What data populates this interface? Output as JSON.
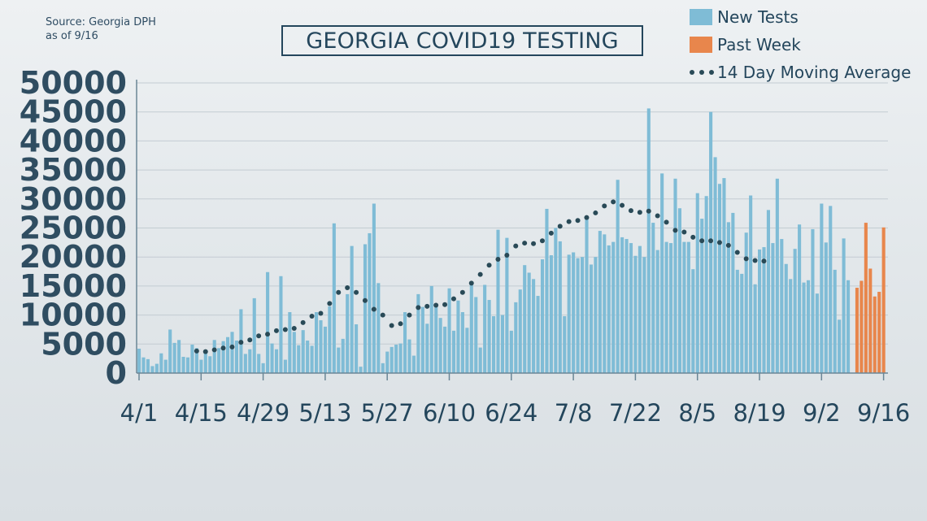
{
  "source": {
    "line1": "Source: Georgia DPH",
    "line2": "as of 9/16"
  },
  "legend": [
    {
      "label": "New Tests",
      "color": "#7fbcd6",
      "kind": "bar"
    },
    {
      "label": "Past Week",
      "color": "#e8864c",
      "kind": "bar"
    },
    {
      "label": "14 Day Moving Average",
      "color": "#294a57",
      "kind": "dots"
    }
  ],
  "chart_data": {
    "type": "bar",
    "title": "GEORGIA COVID19 TESTING",
    "xlabel": "",
    "ylabel": "",
    "ylim": [
      0,
      50000
    ],
    "grid": true,
    "legend_position": "top-right",
    "yticks": [
      0,
      5000,
      10000,
      15000,
      20000,
      25000,
      30000,
      35000,
      40000,
      45000,
      50000
    ],
    "xtick_labels": [
      "4/1",
      "4/15",
      "4/29",
      "5/13",
      "5/27",
      "6/10",
      "6/24",
      "7/8",
      "7/22",
      "8/5",
      "8/19",
      "9/2",
      "9/16"
    ],
    "xtick_indices": [
      0,
      14,
      28,
      42,
      56,
      70,
      84,
      98,
      112,
      126,
      140,
      154,
      168
    ],
    "series": [
      {
        "name": "New Tests",
        "color": "#7fbcd6",
        "start_index": 0,
        "values": [
          4200,
          2700,
          2400,
          1200,
          1600,
          3400,
          2300,
          7500,
          5200,
          5700,
          2800,
          2700,
          4900,
          4300,
          2300,
          3500,
          2900,
          5700,
          4300,
          5500,
          6200,
          7100,
          5600,
          11000,
          3300,
          4100,
          12900,
          3300,
          1700,
          17400,
          5100,
          4100,
          16700,
          2300,
          10500,
          7100,
          4800,
          7400,
          5600,
          4700,
          10500,
          9100,
          8000,
          11500,
          25800,
          4400,
          5900,
          13600,
          21900,
          8400,
          1100,
          22200,
          24100,
          29200,
          15500,
          1700,
          3700,
          4500,
          4900,
          5100,
          10500,
          5800,
          3000,
          13600,
          11400,
          8500,
          15000,
          11900,
          9500,
          8000,
          14600,
          7300,
          12500,
          10500,
          7800,
          15700,
          13100,
          4400,
          15200,
          12600,
          9800,
          24700,
          10000,
          23300,
          7300,
          12200,
          14400,
          18600,
          17300,
          16200,
          13300,
          19600,
          28300,
          20300,
          25000,
          22700,
          9800,
          20400,
          20800,
          19800,
          20000,
          27000,
          18700,
          20000,
          24500,
          23900,
          22000,
          22600,
          33300,
          23400,
          23100,
          22400,
          20200,
          21900,
          20000,
          45600,
          25900,
          21200,
          34400,
          22600,
          22400,
          33500,
          28400,
          22600,
          22600,
          17900,
          31000,
          26600,
          30500,
          45000,
          37200,
          32600,
          33600,
          26000,
          27600,
          17800,
          17100,
          24200,
          30600,
          15300,
          21300,
          21700,
          28100,
          22400,
          33500,
          23100,
          18800,
          16200,
          21400,
          25600,
          15600,
          16000,
          24800,
          13700,
          29200,
          22500,
          28800,
          17800,
          9200,
          23200,
          16000
        ]
      },
      {
        "name": "Past Week",
        "color": "#e8864c",
        "start_index": 162,
        "values": [
          14700,
          15900,
          25900,
          18000,
          13200,
          14000,
          25100
        ]
      },
      {
        "name": "14 Day Moving Average",
        "color": "#294a57",
        "start_index": 13,
        "values": [
          3800,
          3800,
          3700,
          3700,
          4000,
          4300,
          4300,
          4500,
          4500,
          4700,
          5300,
          5300,
          5700,
          5900,
          6400,
          6500,
          6700,
          7100,
          7300,
          7500,
          7500,
          7500,
          7700,
          8000,
          8700,
          9200,
          9800,
          10100,
          10300,
          10500,
          12000,
          13000,
          13900,
          14900,
          14700,
          14400,
          13900,
          13300,
          12500,
          11600,
          11000,
          10700,
          10000,
          9200,
          8200,
          8000,
          8500,
          9500,
          10000,
          10500,
          11300,
          11500,
          11500,
          11700,
          11700,
          11700,
          11800,
          12300,
          12800,
          13400,
          13900,
          14700,
          15500,
          16300,
          17000,
          17900,
          18600,
          19200,
          19600,
          19700,
          20300,
          21200,
          21900,
          22200,
          22400,
          22300,
          22300,
          22500,
          22800,
          23400,
          24100,
          24800,
          25300,
          25700,
          26100,
          26300,
          26300,
          26300,
          26800,
          27200,
          27600,
          28300,
          28800,
          29200,
          29500,
          29200,
          28900,
          28500,
          28000,
          27700,
          27700,
          27800,
          27900,
          27600,
          27100,
          26500,
          26000,
          25100,
          24600,
          24600,
          24300,
          23800,
          23400,
          23200,
          22800,
          22600,
          22800,
          22800,
          22500,
          22500,
          22000,
          21500,
          20800,
          20200,
          19700,
          19300,
          19400,
          19500,
          19300,
          18800
        ]
      }
    ]
  }
}
